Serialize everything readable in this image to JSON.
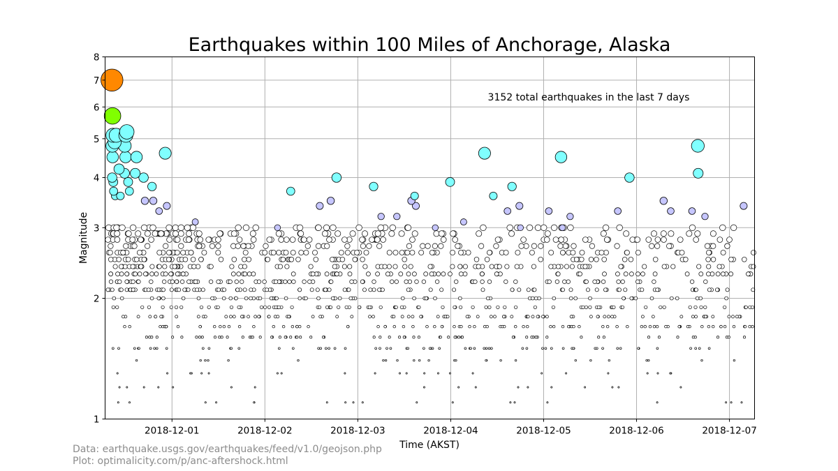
{
  "credits": {
    "data_line": "Data: earthquake.usgs.gov/earthquakes/feed/v1.0/geojson.php",
    "plot_line": "Plot: optimalicity.com/p/anc-aftershock.html"
  },
  "chart_data": {
    "type": "scatter",
    "title": "Earthquakes within 100 Miles of Anchorage, Alaska",
    "xlabel": "Time (AKST)",
    "ylabel": "Magnitude",
    "annotation": "3152 total earthquakes in the last 7 days",
    "y_scale": "log",
    "ylim": [
      1,
      8
    ],
    "y_ticks": [
      1,
      2,
      3,
      4,
      5,
      6,
      7,
      8
    ],
    "xlim_days": [
      -0.72,
      6.27
    ],
    "x_ticks": [
      "2018-12-01",
      "2018-12-02",
      "2018-12-03",
      "2018-12-04",
      "2018-12-05",
      "2018-12-06",
      "2018-12-07"
    ],
    "grid": true,
    "color_scale": {
      "2.9": "#ffffff",
      "3.5": "#c6c6ff",
      "5.5": "#80ffff",
      "6.5": "#80ff00",
      "8": "#ff8800"
    },
    "total_count": 3152,
    "points": [
      {
        "t": "2018-11-30 08:29",
        "m": 7.0
      },
      {
        "t": "2018-11-30 08:38",
        "m": 5.7
      },
      {
        "t": "2018-11-30 08:45",
        "m": 5.1
      },
      {
        "t": "2018-11-30 08:36",
        "m": 4.8
      },
      {
        "t": "2018-11-30 08:40",
        "m": 4.5
      },
      {
        "t": "2018-11-30 09:35",
        "m": 5.1
      },
      {
        "t": "2018-11-30 09:10",
        "m": 4.9
      },
      {
        "t": "2018-11-30 10:20",
        "m": 4.2
      },
      {
        "t": "2018-11-30 11:48",
        "m": 4.8
      },
      {
        "t": "2018-11-30 12:05",
        "m": 5.1
      },
      {
        "t": "2018-11-30 12:20",
        "m": 5.2
      },
      {
        "t": "2018-11-30 12:00",
        "m": 4.5
      },
      {
        "t": "2018-11-30 14:50",
        "m": 4.5
      },
      {
        "t": "2018-11-30 14:30",
        "m": 4.1
      },
      {
        "t": "2018-11-30 11:45",
        "m": 4.1
      },
      {
        "t": "2018-11-30 16:40",
        "m": 4.0
      },
      {
        "t": "2018-11-30 22:15",
        "m": 4.6
      },
      {
        "t": "2018-11-30 18:50",
        "m": 3.8
      },
      {
        "t": "2018-12-02 06:40",
        "m": 3.7
      },
      {
        "t": "2018-12-02 18:30",
        "m": 4.0
      },
      {
        "t": "2018-12-03 04:05",
        "m": 3.8
      },
      {
        "t": "2018-12-03 14:40",
        "m": 3.6
      },
      {
        "t": "2018-12-03 23:50",
        "m": 3.9
      },
      {
        "t": "2018-12-04 08:45",
        "m": 4.6
      },
      {
        "t": "2018-12-04 11:00",
        "m": 3.6
      },
      {
        "t": "2018-12-04 15:50",
        "m": 3.8
      },
      {
        "t": "2018-12-05 04:30",
        "m": 4.5
      },
      {
        "t": "2018-12-05 22:10",
        "m": 4.0
      },
      {
        "t": "2018-12-06 15:50",
        "m": 4.8
      },
      {
        "t": "2018-12-06 15:55",
        "m": 4.1
      },
      {
        "t": "2018-11-30 08:32",
        "m": 4.0
      },
      {
        "t": "2018-11-30 08:50",
        "m": 3.9
      },
      {
        "t": "2018-11-30 08:55",
        "m": 3.7
      },
      {
        "t": "2018-11-30 09:20",
        "m": 3.6
      },
      {
        "t": "2018-11-30 10:40",
        "m": 3.6
      },
      {
        "t": "2018-11-30 13:00",
        "m": 3.7
      },
      {
        "t": "2018-11-30 12:40",
        "m": 3.9
      },
      {
        "t": "2018-11-30 17:00",
        "m": 3.5
      },
      {
        "t": "2018-11-30 19:10",
        "m": 3.5
      },
      {
        "t": "2018-11-30 20:40",
        "m": 3.3
      },
      {
        "t": "2018-11-30 22:40",
        "m": 3.4
      },
      {
        "t": "2018-12-01 06:00",
        "m": 3.1
      },
      {
        "t": "2018-12-02 14:10",
        "m": 3.4
      },
      {
        "t": "2018-12-02 17:00",
        "m": 3.5
      },
      {
        "t": "2018-12-03 10:05",
        "m": 3.2
      },
      {
        "t": "2018-12-03 13:50",
        "m": 3.5
      },
      {
        "t": "2018-12-03 15:00",
        "m": 3.4
      },
      {
        "t": "2018-12-04 14:40",
        "m": 3.3
      },
      {
        "t": "2018-12-04 17:45",
        "m": 3.4
      },
      {
        "t": "2018-12-04 03:20",
        "m": 3.1
      },
      {
        "t": "2018-12-05 01:20",
        "m": 3.3
      },
      {
        "t": "2018-12-05 06:50",
        "m": 3.2
      },
      {
        "t": "2018-12-05 19:10",
        "m": 3.3
      },
      {
        "t": "2018-12-06 07:00",
        "m": 3.5
      },
      {
        "t": "2018-12-06 08:50",
        "m": 3.3
      },
      {
        "t": "2018-12-06 17:40",
        "m": 3.2
      },
      {
        "t": "2018-12-07 03:40",
        "m": 3.4
      },
      {
        "t": "2018-12-02 03:15",
        "m": 3.0
      },
      {
        "t": "2018-12-03 06:00",
        "m": 3.2
      },
      {
        "t": "2018-12-05 04:50",
        "m": 3.0
      },
      {
        "t": "2018-12-06 14:20",
        "m": 3.3
      },
      {
        "t": "2018-12-04 18:00",
        "m": 3.0
      },
      {
        "t": "2018-12-03 20:00",
        "m": 3.0
      }
    ]
  }
}
